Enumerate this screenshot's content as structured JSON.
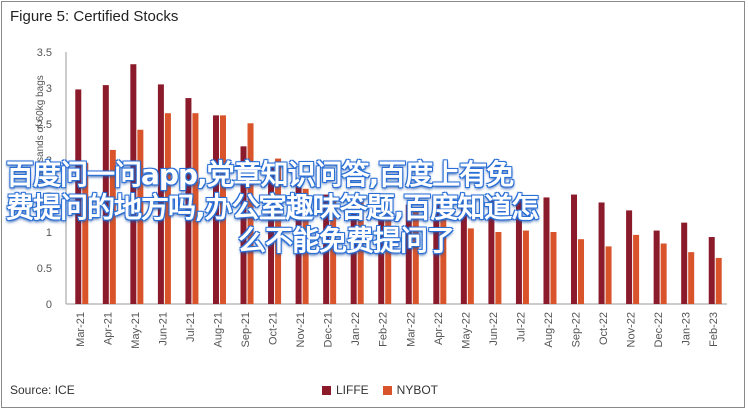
{
  "title": "Figure 5: Certified Stocks",
  "source": "Source: ICE",
  "overlay_text": {
    "line1": "百度问一问app,党章知识问答,百度上有免",
    "line2": "费提问的地方吗,办公室趣味答题,百度知道怎",
    "line3": "么不能免费提问了"
  },
  "colors": {
    "LIFFE": "#8b1a2b",
    "NYBOT": "#d9542a"
  },
  "chart_data": {
    "type": "bar",
    "title": "Figure 5: Certified Stocks",
    "ylabel": "Thousands of 60kg bags",
    "ylim": [
      0,
      3.5
    ],
    "yticks": [
      0,
      0.5,
      1,
      1.5,
      2,
      2.5,
      3,
      3.5
    ],
    "grid": false,
    "legend_position": "bottom",
    "categories": [
      "Mar-21",
      "Apr-21",
      "May-21",
      "Jun-21",
      "Jul-21",
      "Aug-21",
      "Sep-21",
      "Oct-21",
      "Nov-21",
      "Dec-21",
      "Jan-22",
      "Feb-22",
      "Mar-22",
      "Apr-22",
      "May-22",
      "Jun-22",
      "Jul-22",
      "Aug-22",
      "Sep-22",
      "Oct-22",
      "Nov-22",
      "Dec-22",
      "Jan-23",
      "Feb-23"
    ],
    "series": [
      {
        "name": "LIFFE",
        "values": [
          2.98,
          3.04,
          3.33,
          3.05,
          2.86,
          2.62,
          2.19,
          1.95,
          1.66,
          1.52,
          1.42,
          1.52,
          1.38,
          1.43,
          1.42,
          1.44,
          1.45,
          1.48,
          1.52,
          1.41,
          1.3,
          1.02,
          1.13,
          0.93
        ]
      },
      {
        "name": "NYBOT",
        "values": [
          1.96,
          2.14,
          2.42,
          2.65,
          2.65,
          2.62,
          2.51,
          2.02,
          1.6,
          1.47,
          1.44,
          1.42,
          1.34,
          1.22,
          1.05,
          1.0,
          1.02,
          1.0,
          0.9,
          0.8,
          0.96,
          0.84,
          0.72,
          0.64
        ]
      }
    ]
  }
}
